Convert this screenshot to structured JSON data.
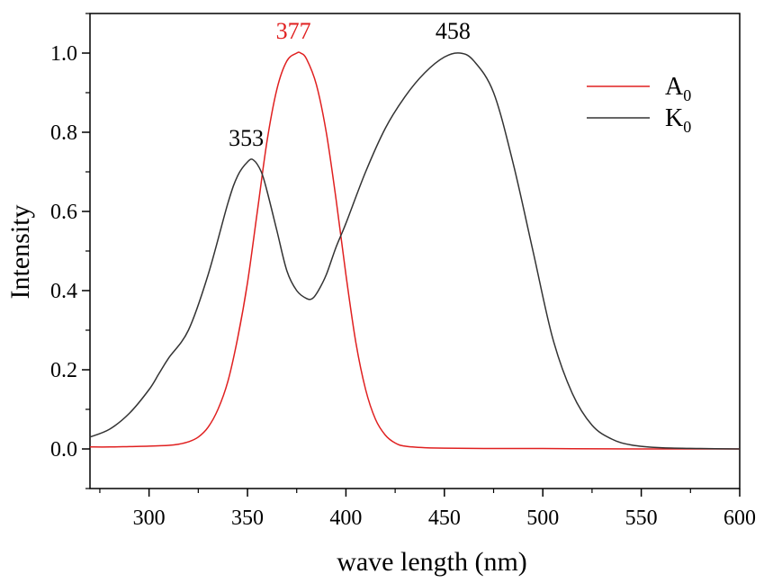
{
  "chart_data": {
    "type": "line",
    "title": "",
    "xlabel": "wave length (nm)",
    "ylabel": "Intensity",
    "xlim": [
      270,
      600
    ],
    "ylim": [
      -0.1,
      1.1
    ],
    "xticks": [
      300,
      350,
      400,
      450,
      500,
      550,
      600
    ],
    "xtick_labels": [
      "300",
      "350",
      "400",
      "450",
      "500",
      "550",
      "600"
    ],
    "yticks": [
      0.0,
      0.2,
      0.4,
      0.6,
      0.8,
      1.0
    ],
    "ytick_labels": [
      "0.0",
      "0.2",
      "0.4",
      "0.6",
      "0.8",
      "1.0"
    ],
    "grid": false,
    "legend_position": "top-right",
    "series": [
      {
        "name": "A0",
        "legend_main": "A",
        "legend_sub": "0",
        "color": "#e02020",
        "x": [
          270,
          280,
          290,
          300,
          310,
          315,
          320,
          325,
          330,
          335,
          340,
          345,
          350,
          355,
          360,
          365,
          370,
          375,
          377,
          380,
          385,
          390,
          395,
          400,
          405,
          410,
          415,
          420,
          425,
          430,
          440,
          450,
          470,
          500,
          550,
          600
        ],
        "y": [
          0.005,
          0.005,
          0.006,
          0.007,
          0.009,
          0.012,
          0.018,
          0.03,
          0.055,
          0.1,
          0.17,
          0.28,
          0.42,
          0.6,
          0.78,
          0.91,
          0.98,
          1.0,
          1.0,
          0.985,
          0.92,
          0.8,
          0.63,
          0.44,
          0.27,
          0.15,
          0.075,
          0.035,
          0.015,
          0.007,
          0.003,
          0.002,
          0.001,
          0.001,
          0.0,
          0.0
        ]
      },
      {
        "name": "K0",
        "legend_main": "K",
        "legend_sub": "0",
        "color": "#333333",
        "x": [
          270,
          280,
          290,
          300,
          305,
          310,
          320,
          330,
          340,
          345,
          350,
          353,
          357,
          360,
          365,
          370,
          375,
          380,
          383,
          386,
          390,
          395,
          400,
          410,
          420,
          430,
          440,
          450,
          458,
          465,
          475,
          485,
          495,
          505,
          515,
          525,
          535,
          545,
          560,
          580,
          600
        ],
        "y": [
          0.03,
          0.05,
          0.09,
          0.15,
          0.19,
          0.23,
          0.3,
          0.44,
          0.62,
          0.69,
          0.725,
          0.73,
          0.7,
          0.65,
          0.55,
          0.45,
          0.4,
          0.38,
          0.38,
          0.4,
          0.44,
          0.51,
          0.57,
          0.7,
          0.81,
          0.89,
          0.95,
          0.99,
          1.0,
          0.98,
          0.9,
          0.72,
          0.5,
          0.28,
          0.14,
          0.06,
          0.025,
          0.01,
          0.003,
          0.001,
          0.0
        ]
      }
    ],
    "annotations": [
      {
        "text": "353",
        "x": 353,
        "y": 0.73,
        "color": "#000000"
      },
      {
        "text": "377",
        "x": 377,
        "y": 1.0,
        "color": "#e02020"
      },
      {
        "text": "458",
        "x": 458,
        "y": 1.0,
        "color": "#000000"
      }
    ]
  }
}
